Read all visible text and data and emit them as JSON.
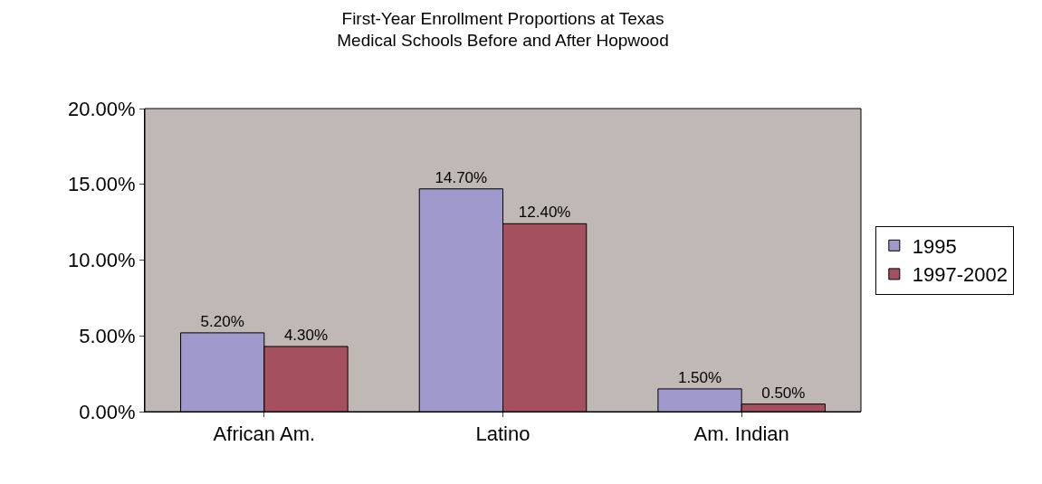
{
  "chart_data": {
    "type": "bar",
    "title": "First-Year Enrollment Proportions at Texas\nMedical Schools Before and After Hopwood",
    "categories": [
      "African Am.",
      "Latino",
      "Am. Indian"
    ],
    "series": [
      {
        "name": "1995",
        "color": "#9f99cc",
        "values": [
          5.2,
          14.7,
          1.5
        ],
        "value_labels": [
          "5.20%",
          "14.70%",
          "1.50%"
        ]
      },
      {
        "name": "1997-2002",
        "color": "#a5505f",
        "values": [
          4.3,
          12.4,
          0.5
        ],
        "value_labels": [
          "4.30%",
          "12.40%",
          "0.50%"
        ]
      }
    ],
    "ylim": [
      0,
      20
    ],
    "yticks": [
      {
        "value": 0,
        "label": "0.00%"
      },
      {
        "value": 5,
        "label": "5.00%"
      },
      {
        "value": 10,
        "label": "10.00%"
      },
      {
        "value": 15,
        "label": "15.00%"
      },
      {
        "value": 20,
        "label": "20.00%"
      }
    ],
    "grid": false,
    "legend": "right"
  }
}
